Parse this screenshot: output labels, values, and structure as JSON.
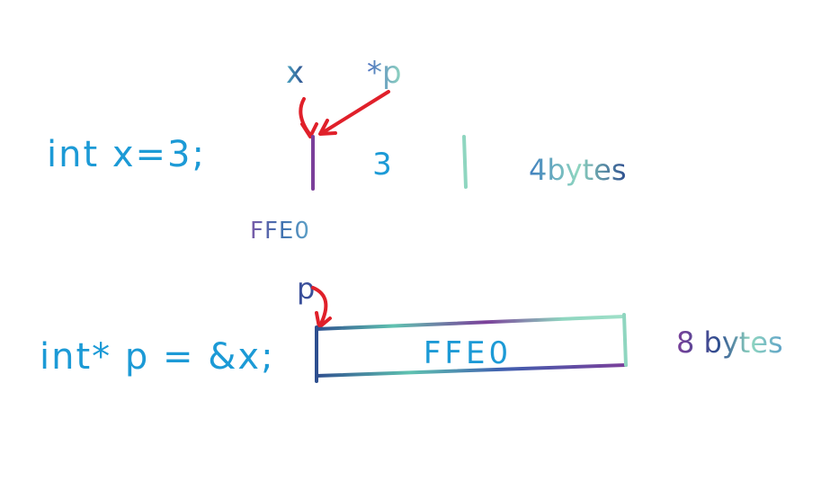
{
  "code": {
    "decl_x": "int x=3;",
    "decl_p": "int* p = &x;"
  },
  "labels": {
    "x_name": "x",
    "deref_p": "*p",
    "p_name": "p",
    "address": "FFE0"
  },
  "memory": {
    "x_value": "3",
    "x_size": "4bytes",
    "p_value": "FFE0",
    "p_size": "8 bytes"
  },
  "colors": {
    "code_text": "#1c9ad6",
    "arrow": "#e0202a",
    "box_teal": "#5fc2b0",
    "box_purple": "#7b3f9a",
    "box_navy": "#2e4f8f",
    "box_mint": "#8fd6c0"
  }
}
